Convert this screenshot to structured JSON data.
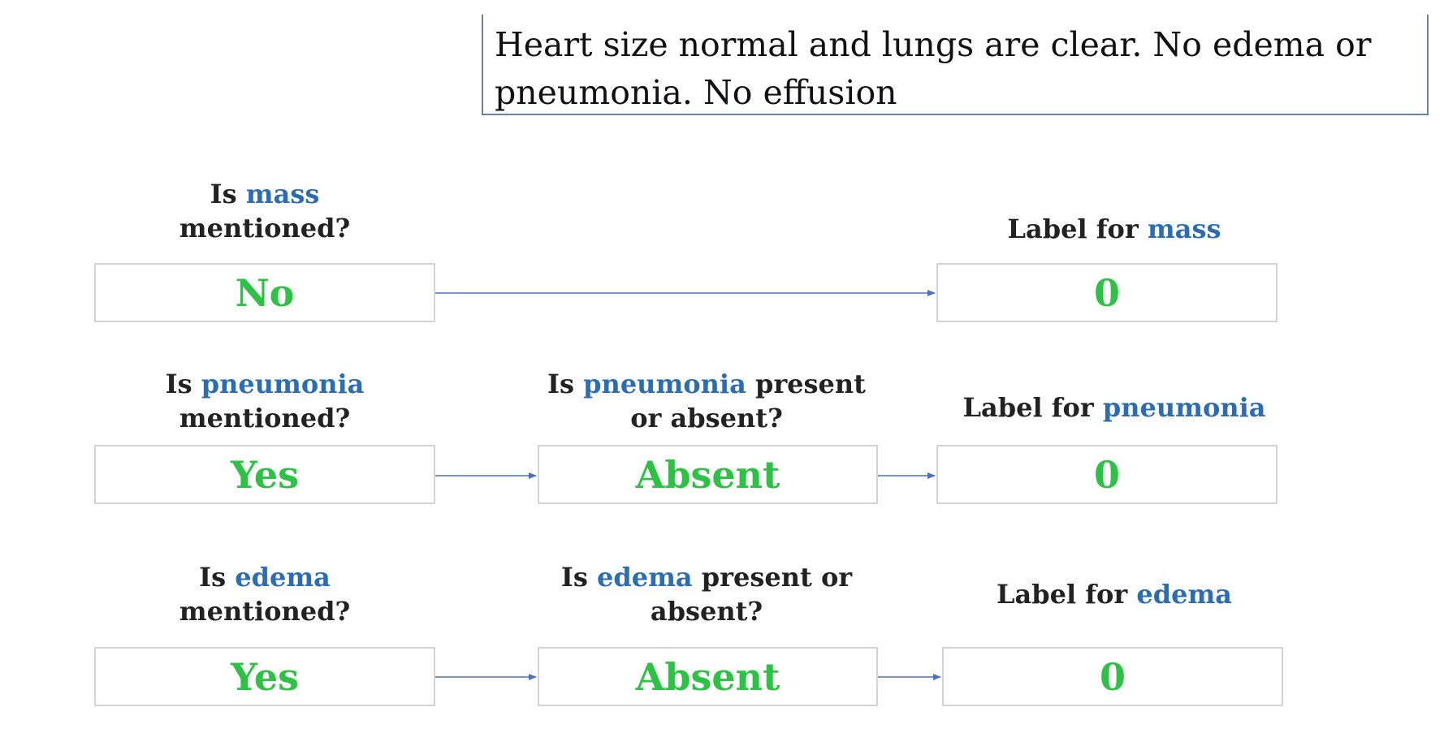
{
  "report": {
    "text": "Heart size normal and lungs are clear. No edema or pneumonia. No effusion"
  },
  "rows": [
    {
      "mentioned_question": {
        "prefix": "Is ",
        "keyword": "mass",
        "suffix": "mentioned?"
      },
      "mentioned_answer": "No",
      "label_question": {
        "prefix": "Label for ",
        "keyword": "mass"
      },
      "label_value": "0"
    },
    {
      "mentioned_question": {
        "prefix": "Is ",
        "keyword": "pneumonia",
        "suffix": "mentioned?"
      },
      "mentioned_answer": "Yes",
      "presence_question": {
        "prefix": "Is ",
        "keyword": "pneumonia",
        "rest1": " present",
        "rest2": "or absent?"
      },
      "presence_answer": "Absent",
      "label_question": {
        "prefix": "Label for ",
        "keyword": "pneumonia"
      },
      "label_value": "0"
    },
    {
      "mentioned_question": {
        "prefix": "Is ",
        "keyword": "edema",
        "suffix": "mentioned?"
      },
      "mentioned_answer": "Yes",
      "presence_question": {
        "prefix": "Is ",
        "keyword": "edema",
        "rest1": " present or",
        "rest2": "absent?"
      },
      "presence_answer": "Absent",
      "label_question": {
        "prefix": "Label for ",
        "keyword": "edema"
      },
      "label_value": "0"
    }
  ],
  "colors": {
    "keyword": "#2a6db5",
    "answer": "#2cc244",
    "arrow": "#4a72c4",
    "report_border": "#6a82a8"
  }
}
